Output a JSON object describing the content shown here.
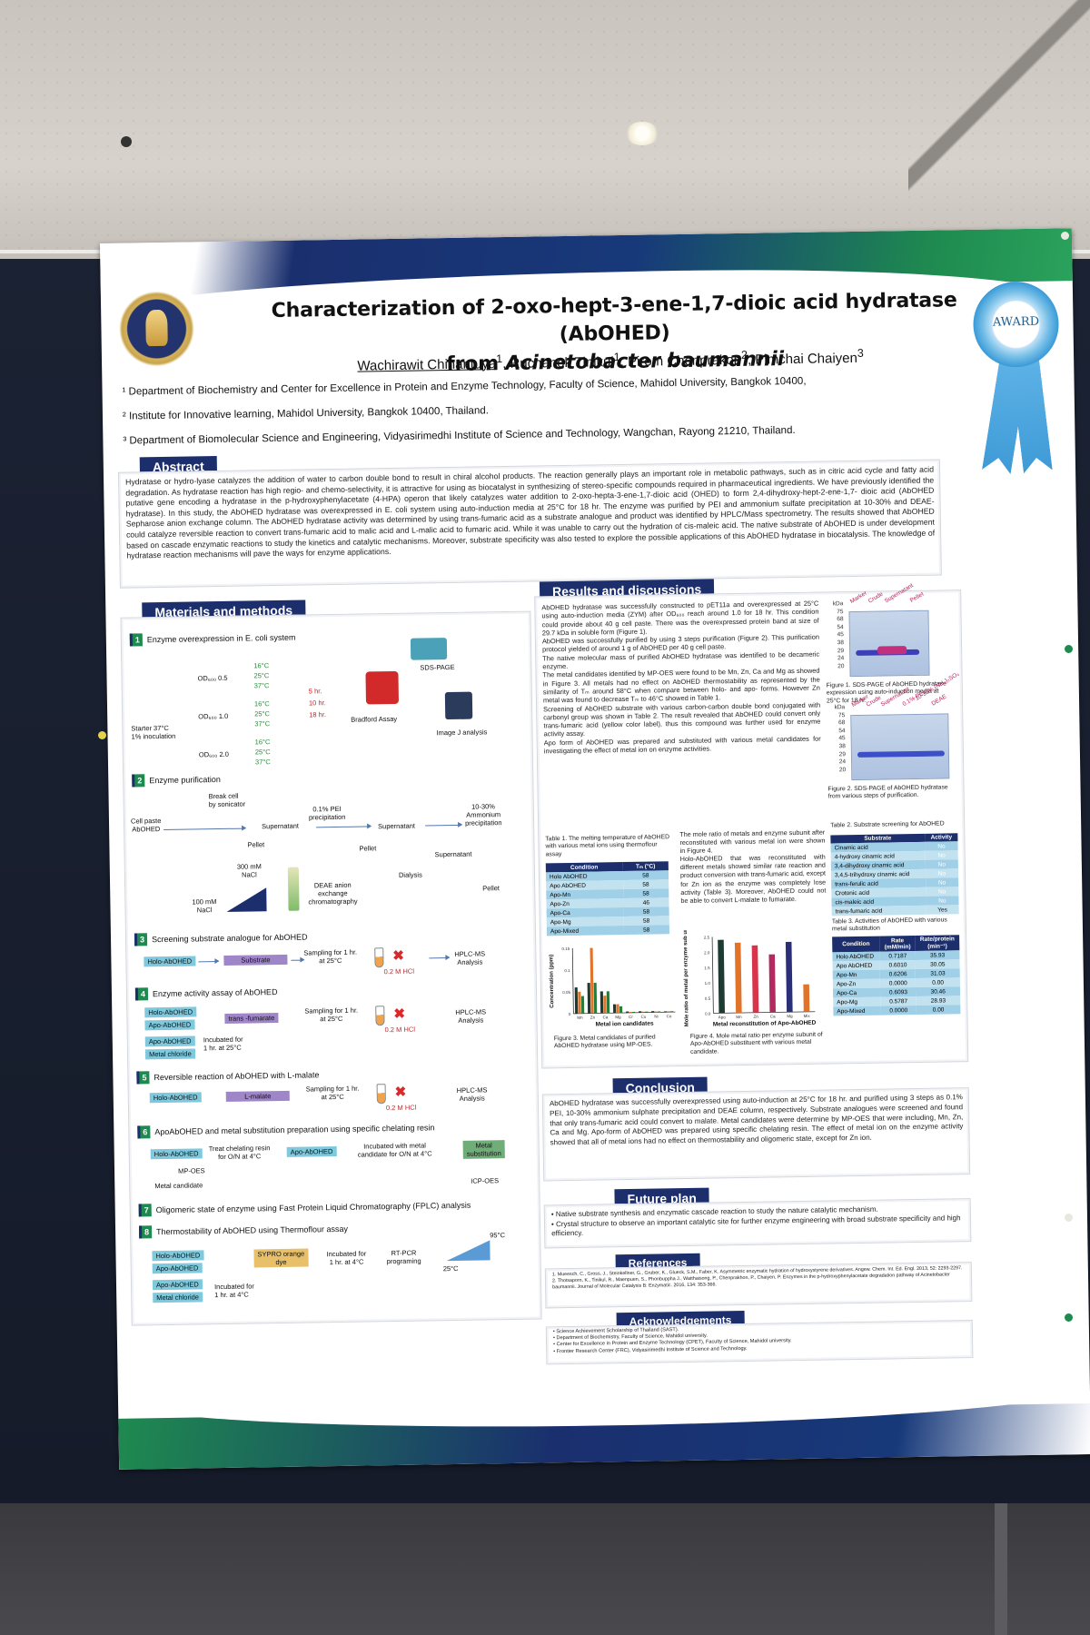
{
  "poster": {
    "title_line1": "Characterization of 2-oxo-hept-3-ene-1,7-dioic acid hydratase (AbOHED)",
    "title_line2_prefix": "from ",
    "title_line2_species": "Acinetobacter  baumannii",
    "authors": {
      "a1": "Wachirawit Chinantuya",
      "a1_sup": "1",
      "a2": ", Ruchanok Tinikul",
      "a2_sup": "1",
      "a3": ", Pirom Chenprakon",
      "a3_sup": "2",
      "a4": ", Pimchai Chaiyen",
      "a4_sup": "3"
    },
    "affiliations": [
      "¹ Department of Biochemistry and Center for Excellence in Protein and Enzyme Technology, Faculty of Science, Mahidol University, Bangkok 10400,",
      "² Institute for Innovative learning, Mahidol University, Bangkok 10400, Thailand.",
      "³ Department of Biomolecular Science and Engineering, Vidyasirimedhi Institute of Science and Technology, Wangchan, Rayong 21210, Thailand."
    ],
    "award": "AWARD",
    "abstract": {
      "heading": "Abstract",
      "text": "Hydratase or hydro-lyase catalyzes the addition of water to carbon double bond to result in chiral alcohol products. The reaction generally plays an important role in metabolic pathways, such as in citric acid cycle and fatty acid degradation. As hydratase reaction has high regio- and chemo-selectivity, it is attractive for using as biocatalyst in synthesizing of stereo-specific compounds required in pharmaceutical ingredients. We have previously identified the putative gene encoding a hydratase in the p-hydroxyphenylacetate (4-HPA) operon that likely catalyzes water addition to 2-oxo-hepta-3-ene-1,7-dioic acid (OHED) to form 2,4-dihydroxy-hept-2-ene-1,7- dioic acid (AbOHED hydratase). In this study, the AbOHED hydratase was overexpressed in E. coli system using auto-induction media at 25°C for 18 hr. The enzyme was purified by PEI and ammonium sulfate precipitation at 10-30% and DEAE-Sepharose anion exchange column. The AbOHED hydratase activity was determined by using trans-fumaric acid as a substrate analogue and product was identified by HPLC/Mass spectrometry. The results showed that AbOHED could catalyze reversible reaction to convert trans-fumaric acid to malic acid and L-malic acid to fumaric acid. While it was unable to carry out the hydration of cis-maleic acid. The native substrate of AbOHED is under development based on cascade enzymatic reactions to study the kinetics and catalytic mechanisms. Moreover, substrate specificity was also tested to explore the possible applications of this AbOHED hydratase in biocatalysis. The knowledge of hydratase reaction mechanisms will pave the ways for enzyme applications."
    },
    "methods": {
      "heading": "Materials and methods",
      "steps": [
        {
          "num": "1",
          "label": "Enzyme overexpression in E. coli system"
        },
        {
          "num": "2",
          "label": "Enzyme purification"
        },
        {
          "num": "3",
          "label": "Screening substrate analogue for AbOHED"
        },
        {
          "num": "4",
          "label": "Enzyme activity assay of AbOHED"
        },
        {
          "num": "5",
          "label": "Reversible reaction of AbOHED with L-malate"
        },
        {
          "num": "6",
          "label": "ApoAbOHED and metal substitution preparation using specific chelating resin"
        },
        {
          "num": "7",
          "label": "Oligomeric state of enzyme using Fast Protein Liquid Chromatography (FPLC) analysis"
        },
        {
          "num": "8",
          "label": "Thermostability of AbOHED using Thermoflour assay"
        }
      ],
      "s1": {
        "starter": "Starter 37°C\n1% inoculation",
        "od1": "OD₆₀₀ 0.5",
        "od2": "OD₆₀₀ 1.0",
        "od3": "OD₆₀₀ 2.0",
        "temps": [
          "16°C",
          "25°C",
          "37°C"
        ],
        "times": [
          "5 hr.",
          "10 hr.",
          "18 hr."
        ],
        "sds": "SDS-PAGE",
        "bradford": "Bradford Assay",
        "imagej": "Image J analysis"
      },
      "s2": {
        "cell_paste": "Cell paste\nAbOHED",
        "break": "Break cell\nby sonicator",
        "pei": "0.1% PEI\nprecipitation",
        "ammonium": "10-30%\nAmmonium\nprecipitation",
        "supernatant": "Supernatant",
        "pellet": "Pellet",
        "nacl300": "300 mM\nNaCl",
        "nacl100": "100 mM\nNaCl",
        "deae": "DEAE anion\nexchange\nchromatography",
        "dialysis": "Dialysis"
      },
      "s3": {
        "enzyme": "Holo-AbOHED",
        "substrate": "Substrate",
        "sampling": "Sampling for 1 hr.\nat 25°C",
        "hcl": "0.2 M HCl",
        "hplc": "HPLC-MS\nAnalysis"
      },
      "s4": {
        "holo": "Holo-AbOHED",
        "apo": "Apo-AbOHED",
        "apo2": "Apo-AbOHED",
        "metal": "Metal chloride",
        "fumarate": "trans -fumarate",
        "incubated": "Incubated for\n1 hr. at 25°C",
        "sampling": "Sampling for 1 hr.\nat 25°C",
        "hcl": "0.2 M HCl",
        "hplc": "HPLC-MS\nAnalysis"
      },
      "s5": {
        "enzyme": "Holo-AbOHED",
        "substrate": "L-malate",
        "sampling": "Sampling for 1 hr.\nat 25°C",
        "hcl": "0.2 M HCl",
        "hplc": "HPLC-MS\nAnalysis"
      },
      "s6": {
        "holo": "Holo-AbOHED",
        "treat": "Treat chelating resin\nfor O/N at 4°C",
        "apo": "Apo-AbOHED",
        "incubated": "Incubated with metal\ncandidate for O/N at 4°C",
        "metal_sub": "Metal\nsubstitution",
        "mpoes": "MP-OES",
        "metal_candidate": "Metal candidate",
        "icp": "ICP-OES"
      },
      "s8": {
        "holo": "Holo-AbOHED",
        "apo": "Apo-AbOHED",
        "apo2": "Apo-AbOHED",
        "metal": "Metal chloride",
        "sypro": "SYPRO orange\ndye",
        "incubated1": "Incubated for\n1 hr. at 4°C",
        "incubated2": "Incubated for\n1 hr. at 4°C",
        "rtpcr": "RT-PCR\nprograming",
        "t_low": "25°C",
        "t_high": "95°C"
      }
    },
    "results": {
      "heading": "Results and discussions",
      "p1": "AbOHED hydratase was successfully constructed to pET11a and overexpressed at 25°C using auto-induction media (ZYM) after OD₆₀₀ reach around 1.0 for 18 hr. This condition could provide about 40 g cell paste. There was the overexpressed protein band at size of 29.7 kDa in soluble form (Figure 1).",
      "p2": "AbOHED was successfully purified by using 3 steps purification (Figure 2). This purification protocol yielded of around 1 g of AbOHED per 40 g cell paste.",
      "p3": "The native molecular mass of purified AbOHED hydratase was identified to be decameric enzyme.",
      "p4": "The metal candidates identified by MP-OES were found to be Mn, Zn, Ca and Mg as showed in Figure 3. All metals had no effect on AbOHED thermostability as represented by the similarity of Tₘ around 58°C when compare between holo- and apo- forms. However Zn metal was found to decrease Tₘ to 46°C showed in Table 1.",
      "p5": "Screening of AbOHED substrate with various carbon-carbon double bond conjugated with carbonyl group was shown in Table 2. The result revealed that AbOHED could convert only trans-fumaric acid (yellow color label), thus this compound was further used for enzyme activity assay.",
      "p6": "Apo form of AbOHED was prepared and substituted with various metal candidates for investigating the effect of metal ion on enzyme activities.",
      "fig1_caption": "Figure 1. SDS-PAGE of AbOHED hydratase expression using auto-induction media at 25°C for 18 hr.",
      "fig1_lanes": [
        "Marker",
        "Crude",
        "Supernatant",
        "Pellet"
      ],
      "fig2_caption": "Figure 2. SDS-PAGE of AbOHED hydratase from various steps of purification.",
      "fig2_lanes": [
        "Marker",
        "Crude",
        "Supernatant",
        "0.1% PEI",
        "10-30% (NH₄)₂SO₄",
        "DEAE"
      ],
      "ladder": [
        "kDa",
        "75",
        "68",
        "54",
        "45",
        "38",
        "29",
        "24",
        "20"
      ],
      "table1_caption": "Table 1. The melting temperature of AbOHED with various metal ions using thermoflour assay",
      "table1_headers": [
        "Condition",
        "Tₘ (°C)"
      ],
      "table1_rows": [
        [
          "Holo AbOHED",
          "58"
        ],
        [
          "Apo AbOHED",
          "58"
        ],
        [
          "Apo-Mn",
          "58"
        ],
        [
          "Apo-Zn",
          "46"
        ],
        [
          "Apo-Ca",
          "58"
        ],
        [
          "Apo-Mg",
          "58"
        ],
        [
          "Apo-Mixed",
          "58"
        ]
      ],
      "p7": "The mole ratio of metals and enzyme subunit after reconstituted with various metal ion were shown in Figure 4.",
      "p8": "Holo-AbOHED that was reconstituted with different metals showed similar rate reaction and product conversion with trans-fumaric acid, except for Zn ion as the enzyme was completely lose activity (Table 3). Moreover, AbOHED could not be able to convert L-malate to fumarate.",
      "table2_caption": "Table 2. Substrate screening for AbOHED",
      "table2_headers": [
        "Substrate",
        "Activity"
      ],
      "table2_rows": [
        [
          "Cinamic acid",
          "No"
        ],
        [
          "4-hydroxy cinamic acid",
          "No"
        ],
        [
          "3,4-dihydroxy cinamic acid",
          "No"
        ],
        [
          "3,4,5-trihydroxy cinamic acid",
          "No"
        ],
        [
          "trans-ferulic acid",
          "No"
        ],
        [
          "Crotonic acid",
          "No"
        ],
        [
          "cis-maleic acid",
          "No"
        ],
        [
          "trans-fumaric acid",
          "Yes"
        ]
      ],
      "table3_caption": "Table 3. Activities of AbOHED with various metal substitution",
      "table3_headers": [
        "Condition",
        "Rate\n(mM/min)",
        "Rate/protein\n(min⁻¹)"
      ],
      "table3_rows": [
        [
          "Holo AbOHED",
          "0.7187",
          "35.93"
        ],
        [
          "Apo AbOHED",
          "0.6010",
          "30.05"
        ],
        [
          "Apo-Mn",
          "0.6206",
          "31.03"
        ],
        [
          "Apo-Zn",
          "0.0000",
          "0.00"
        ],
        [
          "Apo-Ca",
          "0.6093",
          "30.46"
        ],
        [
          "Apo-Mg",
          "0.5787",
          "28.93"
        ],
        [
          "Apo-Mixed",
          "0.0000",
          "0.00"
        ]
      ],
      "fig3_caption": "Figure 3. Metal candidates of purified AbOHED hydratase using MP-OES.",
      "fig3_xlabel": "Metal ion candidates",
      "fig3_ylabel": "Concentration (ppm)",
      "fig4_caption": "Figure 4. Mole metal ratio per enzyme subunit of Apo-AbOHED substituent with various metal candidate.",
      "fig4_xlabel": "Metal reconstitution of Apo-AbOHED",
      "fig4_ylabel": "Mole ratio of metal per enzyme sub unit"
    },
    "conclusion": {
      "heading": "Conclusion",
      "text": "AbOHED hydratase was successfully overexpressed using auto-induction at 25°C for 18 hr. and purified using 3 steps as 0.1% PEI, 10-30% ammonium sulphate precipitation and DEAE column, respectively. Substrate analogues were screened and found that only trans-fumaric acid could convert to malate. Metal candidates were determine by MP-OES that were including, Mn, Zn, Ca and Mg. Apo-form of AbOHED was prepared using specific chelating resin. The effect of metal ion on the enzyme activity showed that all of metal ions had no effect on thermostability and oligomeric state, except for Zn ion."
    },
    "future": {
      "heading": "Future plan",
      "items": [
        "Native substrate synthesis and enzymatic cascade reaction to study the nature catalytic mechanism.",
        "Crystal structure to observe an important catalytic site for further enzyme engineering with broad substrate specificity and high efficiency."
      ]
    },
    "references": {
      "heading": "References",
      "items": [
        "1. Mueesch, C., Gross, J., Steinkellner, G., Gruber, K., Glueck, S.M., Faber, K. Asymmetric enzymatic hydration of hydroxystyrene derivatives. Angew. Chem. Int. Ed. Engl. 2013, 52: 2293-2297.",
        "2. Thotsaporn, K., Tinikul, R., Maenpuen, S., Phonbuppha J., Watthaisong, P., Chenprakhon, P., Chaiyen, P. Enzymes in the p-hydroxyphenylacetate degradation pathway of Acinetobacter baumannii. Journal of Molecular Catalysis B: Enzymatic. 2016, 134: 353-366."
      ]
    },
    "acknowledgements": {
      "heading": "Acknowledgements",
      "items": [
        "Science Achievement Scholarship of Thailand (SAST).",
        "Department of Biochemistry, Faculty of Science, Mahidol university.",
        "Center for Excellence in Protein and Enzyme Technology (CPET), Faculty of Science, Mahidol university.",
        "Frontier Research Center (FRC), Vidyasirimedhi Institute of Science and Technology."
      ]
    }
  },
  "chart_data": [
    {
      "type": "bar",
      "xlabel": "Metal ion candidates",
      "ylabel": "Concentration (ppm)",
      "categories": [
        "Mn",
        "Zn",
        "Ca",
        "Mg",
        "Cr",
        "Cu",
        "Ni",
        "Co"
      ],
      "series": [
        {
          "values": [
            0.06,
            0.07,
            0.05,
            0.02,
            0.003,
            0.003,
            0.003,
            0.002
          ],
          "color": "#1c3b33"
        },
        {
          "values": [
            0.05,
            0.15,
            0.04,
            0.02,
            0.002,
            0.002,
            0.002,
            0.002
          ],
          "color": "#e0742b"
        },
        {
          "values": [
            0.04,
            0.07,
            0.05,
            0.015,
            0.002,
            0.002,
            0.002,
            0.002
          ],
          "color": "#2b7a3d"
        }
      ],
      "ylim": [
        0,
        0.15
      ],
      "yticks": [
        "0.15",
        "0.1",
        "0.05",
        "0"
      ]
    },
    {
      "type": "bar",
      "xlabel": "Metal reconstitution of Apo-AbOHED",
      "ylabel": "Mole ratio of metal per enzyme sub unit",
      "categories": [
        "Apo",
        "Mn",
        "Zn",
        "Ca",
        "Mg",
        "Mix"
      ],
      "values": [
        2.4,
        2.3,
        2.2,
        1.9,
        2.3,
        0.9
      ],
      "colors": [
        "#1c3b33",
        "#e0742b",
        "#d8344a",
        "#b22a5e",
        "#2a2f7a",
        "#e0742b"
      ],
      "ylim": [
        0,
        2.5
      ],
      "yticks": [
        "2.5",
        "2.0",
        "1.5",
        "1.0",
        "0.5",
        "0.0"
      ]
    }
  ]
}
